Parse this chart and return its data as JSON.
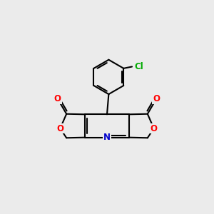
{
  "bg_color": "#ebebeb",
  "bond_color": "#000000",
  "o_color": "#ff0000",
  "n_color": "#0000cc",
  "cl_color": "#00aa00",
  "bond_width": 1.5,
  "figsize": [
    3.0,
    3.0
  ],
  "dpi": 100,
  "xlim": [
    0,
    10
  ],
  "ylim": [
    0,
    10
  ]
}
